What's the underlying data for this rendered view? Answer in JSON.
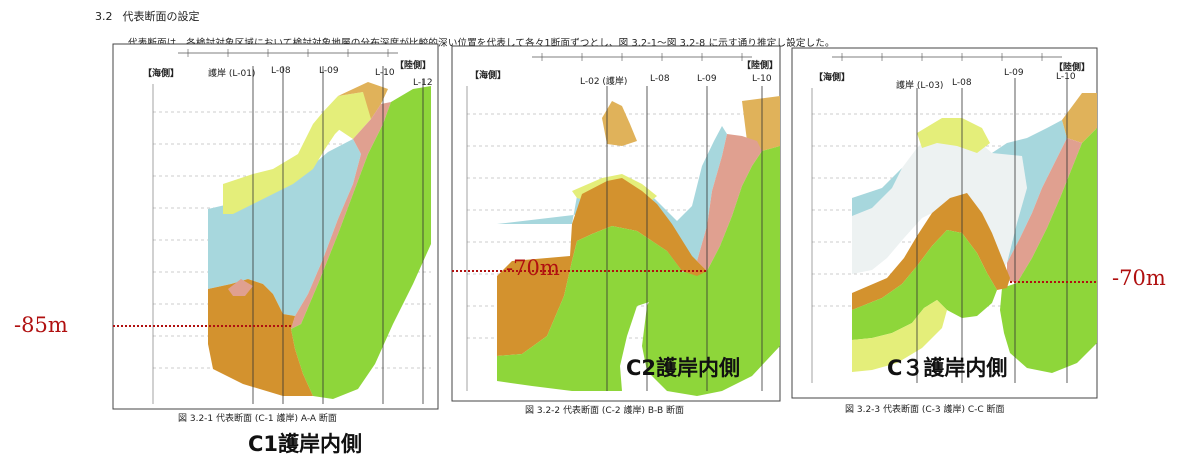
{
  "section": {
    "number": "3.2",
    "title": "代表断面の設定"
  },
  "paragraph": "代表断面は、各検討対象区域において検討対象地層の分布深度が比較的深い位置を代表して各々1断面ずつとし、図 3.2-1～図 3.2-8 に示す通り推定し設定した。",
  "panels": [
    {
      "sea_label": "【海側】",
      "land_label": "【陸側】",
      "lines": [
        "護岸 (L-01)",
        "L-08",
        "L-09",
        "L-10",
        "L-12"
      ],
      "caption": "図 3.2-1 代表断面 (C-1 護岸) A-A 断面",
      "annotation": "C1護岸内側",
      "depth_label": "-85m"
    },
    {
      "sea_label": "【海側】",
      "land_label": "【陸側】",
      "lines": [
        "L-02 (護岸)",
        "L-08",
        "L-09",
        "L-10"
      ],
      "caption": "図 3.2-2 代表断面 (C-2 護岸) B-B 断面",
      "annotation": "C2護岸内側",
      "depth_label": "-70m"
    },
    {
      "sea_label": "【海側】",
      "land_label": "【陸側】",
      "lines": [
        "護岸 (L-03)",
        "L-08",
        "L-09",
        "L-10"
      ],
      "caption": "図 3.2-3 代表断面 (C-3 護岸) C-C 断面",
      "annotation": "C３護岸内側",
      "depth_label": "-70m"
    }
  ],
  "colors": {
    "green": "#8ed63a",
    "orange": "#d3922e",
    "cyan": "#a7d7dd",
    "yellow": "#e4ee7a",
    "tan": "#e0b25a",
    "pink": "#e0a090",
    "red_line": "#b01010"
  }
}
